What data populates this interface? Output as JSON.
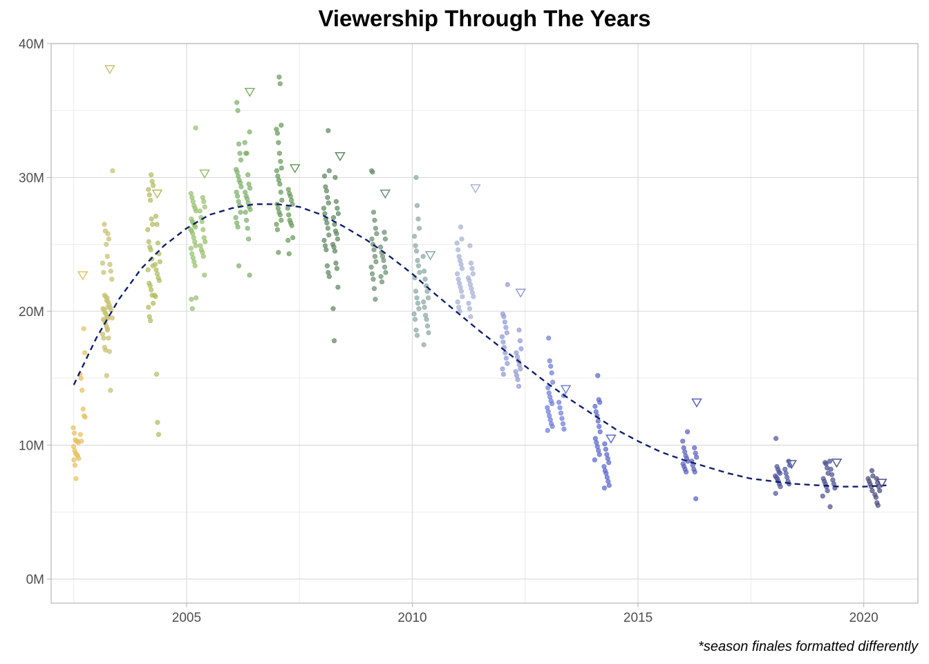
{
  "chart_data": {
    "type": "scatter",
    "title": "Viewership Through The Years",
    "caption": "*season finales formatted differently",
    "xlabel": "",
    "ylabel": "",
    "xlim": [
      2002.0,
      2021.2
    ],
    "ylim": [
      -1.8,
      40
    ],
    "x_ticks": [
      2005,
      2010,
      2015,
      2020
    ],
    "x_tick_labels": [
      "2005",
      "2010",
      "2015",
      "2020"
    ],
    "y_ticks": [
      0,
      10,
      20,
      30,
      40
    ],
    "y_tick_labels": [
      "0M",
      "10M",
      "20M",
      "30M",
      "40M"
    ],
    "grid": true,
    "legend": "none",
    "season_colors": [
      "#e8c060",
      "#c8c070",
      "#b0bc60",
      "#98c070",
      "#7eb06a",
      "#6a9a5a",
      "#5e8860",
      "#6a9070",
      "#8aa8a2",
      "#a8b0d6",
      "#909ad6",
      "#6e7ed8",
      "#5a68cc",
      "#5a62c0",
      "#50579e",
      "#4e5290",
      "#4a4c80",
      "#3e3e66"
    ],
    "seasons": [
      {
        "x": 2002.55,
        "values": [
          11.3,
          10.9,
          10.4,
          10.3,
          10.3,
          10.2,
          9.9,
          9.6,
          9.4,
          9.3,
          9.2,
          9.0,
          8.9,
          8.5,
          7.5
        ]
      },
      {
        "x": 2002.7,
        "values": [
          18.7,
          16.9,
          15.3,
          15.0,
          14.1,
          12.7,
          12.2,
          12.1,
          10.8,
          10.3
        ]
      },
      {
        "x": 2003.2,
        "values": [
          26.5,
          26.0,
          25.0,
          24.1,
          23.6,
          22.9,
          21.2,
          21.1,
          20.8,
          20.3,
          20.2,
          20.1,
          19.9,
          19.8,
          19.6,
          19.5,
          19.4,
          19.3,
          19.1,
          18.9,
          18.7,
          18.3,
          18.0,
          17.3,
          17.1,
          15.2
        ]
      },
      {
        "x": 2003.3,
        "values": [
          30.5,
          25.8,
          25.4,
          23.5,
          23.0,
          22.4,
          21.0,
          20.7,
          20.5,
          20.3,
          20.1,
          19.5,
          18.6,
          18.0,
          17.0,
          14.1
        ]
      },
      {
        "x": 2004.2,
        "values": [
          30.2,
          29.7,
          29.4,
          29.1,
          28.7,
          28.3,
          26.9,
          26.5,
          26.1,
          25.2,
          24.8,
          24.6,
          23.9,
          23.4,
          23.1,
          22.1,
          21.9,
          21.6,
          21.2,
          20.6,
          20.3,
          19.6,
          19.3
        ]
      },
      {
        "x": 2004.35,
        "values": [
          27.1,
          26.5,
          25.1,
          24.3,
          23.7,
          23.5,
          23.1,
          22.8,
          22.5,
          22.3,
          21.2,
          21.1,
          15.3,
          11.7,
          10.8
        ]
      },
      {
        "x": 2005.15,
        "values": [
          33.7,
          28.8,
          28.5,
          28.2,
          27.9,
          27.7,
          27.5,
          26.9,
          26.7,
          26.6,
          26.4,
          26.3,
          26.1,
          26.0,
          25.8,
          25.5,
          25.2,
          24.9,
          24.7,
          24.3,
          24.0,
          23.7,
          23.4,
          21.0,
          20.9,
          20.2
        ]
      },
      {
        "x": 2005.35,
        "values": [
          28.5,
          28.2,
          27.8,
          27.5,
          27.0,
          26.7,
          26.1,
          25.5,
          25.2,
          24.9,
          24.6,
          24.4,
          24.1,
          22.7
        ]
      },
      {
        "x": 2006.15,
        "values": [
          35.6,
          35.0,
          32.5,
          31.8,
          31.3,
          30.6,
          30.4,
          30.1,
          29.8,
          29.6,
          29.3,
          28.9,
          28.6,
          28.2,
          27.9,
          27.4,
          27.0,
          26.6,
          26.3,
          23.4
        ]
      },
      {
        "x": 2006.35,
        "values": [
          33.4,
          32.6,
          31.8,
          31.8,
          30.2,
          29.5,
          29.2,
          28.9,
          28.6,
          28.4,
          28.1,
          27.8,
          27.6,
          27.4,
          26.8,
          26.2,
          25.4,
          22.7
        ]
      },
      {
        "x": 2007.05,
        "values": [
          37.5,
          37.0,
          33.9,
          33.6,
          33.3,
          32.6,
          31.8,
          31.2,
          30.7,
          30.5,
          30.1,
          29.8,
          29.5,
          28.9,
          28.3,
          28.0,
          27.7,
          27.4,
          27.2,
          26.8,
          26.5,
          26.1,
          24.4
        ]
      },
      {
        "x": 2007.3,
        "values": [
          29.1,
          28.8,
          28.6,
          28.3,
          28.0,
          27.7,
          27.2,
          26.8,
          26.6,
          26.4,
          25.5,
          25.3,
          24.3
        ]
      },
      {
        "x": 2008.1,
        "values": [
          33.5,
          30.5,
          30.1,
          29.3,
          29.0,
          28.5,
          28.1,
          27.7,
          27.3,
          26.9,
          26.6,
          26.2,
          25.7,
          25.3,
          24.9,
          24.6,
          23.4,
          22.9,
          22.6
        ]
      },
      {
        "x": 2008.3,
        "values": [
          30.0,
          28.2,
          27.7,
          27.3,
          27.0,
          26.5,
          26.0,
          25.8,
          25.4,
          25.0,
          24.8,
          24.5,
          23.6,
          23.2,
          21.8,
          20.2,
          17.8
        ]
      },
      {
        "x": 2009.15,
        "values": [
          30.5,
          30.4,
          27.4,
          26.8,
          26.2,
          25.8,
          25.4,
          25.0,
          24.6,
          24.1,
          23.7,
          23.3,
          22.8,
          22.4,
          21.7,
          20.9
        ]
      },
      {
        "x": 2009.35,
        "values": [
          25.9,
          25.4,
          24.8,
          24.4,
          24.1,
          23.8,
          23.3,
          22.9,
          22.6,
          22.2
        ]
      },
      {
        "x": 2010.1,
        "values": [
          30.0,
          27.9,
          26.9,
          26.2,
          25.6,
          24.9,
          24.5,
          23.8,
          23.4,
          22.9,
          22.5,
          21.5,
          21.0,
          20.6,
          20.2,
          19.8,
          19.4,
          18.6,
          18.2
        ]
      },
      {
        "x": 2010.3,
        "values": [
          24.1,
          23.0,
          22.4,
          21.9,
          21.5,
          21.0,
          20.7,
          20.3,
          19.7,
          19.4,
          18.9,
          18.4,
          17.5
        ]
      },
      {
        "x": 2011.05,
        "values": [
          26.3,
          25.4,
          25.1,
          24.6,
          24.1,
          23.8,
          23.5,
          23.2,
          22.8,
          22.4,
          22.1,
          21.8,
          21.5,
          21.1,
          20.7,
          20.3,
          20.0
        ]
      },
      {
        "x": 2011.3,
        "values": [
          24.9,
          23.6,
          23.2,
          22.8,
          22.5,
          22.3,
          22.0,
          21.7,
          21.4,
          21.1,
          20.6,
          20.2,
          19.6
        ]
      },
      {
        "x": 2012.05,
        "values": [
          22.0,
          19.8,
          19.6,
          19.2,
          18.8,
          18.4,
          18.1,
          17.7,
          17.3,
          16.9,
          16.5,
          16.1,
          15.7,
          15.3
        ]
      },
      {
        "x": 2012.35,
        "values": [
          18.6,
          17.8,
          17.2,
          16.9,
          16.6,
          16.3,
          16.0,
          15.7,
          15.5,
          15.2,
          14.9,
          14.4
        ]
      },
      {
        "x": 2013.05,
        "values": [
          18.0,
          16.3,
          15.9,
          15.4,
          14.7,
          14.3,
          13.9,
          13.6,
          13.3,
          13.1,
          12.8,
          12.5,
          12.2,
          11.9,
          11.6,
          11.4,
          11.1
        ]
      },
      {
        "x": 2013.3,
        "values": [
          13.7,
          13.2,
          12.8,
          12.4,
          12.0,
          11.6,
          11.2
        ]
      },
      {
        "x": 2014.1,
        "values": [
          15.2,
          13.4,
          13.2,
          12.9,
          12.5,
          12.2,
          11.8,
          11.4,
          11.0,
          10.5,
          10.2,
          9.9,
          9.6,
          9.3,
          8.9
        ]
      },
      {
        "x": 2014.3,
        "values": [
          10.1,
          9.7,
          9.3,
          9.0,
          8.7,
          8.4,
          8.1,
          7.9,
          7.6,
          7.3,
          7.0,
          6.8
        ]
      },
      {
        "x": 2016.05,
        "values": [
          11.0,
          10.3,
          9.8,
          9.5,
          9.2,
          9.0,
          8.8,
          8.6,
          8.4,
          8.2,
          8.0
        ]
      },
      {
        "x": 2016.25,
        "values": [
          9.8,
          9.4,
          9.1,
          8.8,
          8.5,
          8.2,
          8.0,
          6.0
        ]
      },
      {
        "x": 2018.1,
        "values": [
          10.5,
          8.4,
          8.2,
          8.0,
          7.9,
          7.7,
          7.6,
          7.5,
          7.3,
          7.1,
          6.9,
          6.4
        ]
      },
      {
        "x": 2018.3,
        "values": [
          8.8,
          8.5,
          8.2,
          7.9,
          7.6,
          7.3,
          7.1
        ]
      },
      {
        "x": 2019.15,
        "values": [
          8.7,
          8.6,
          8.3,
          7.9,
          7.5,
          7.3,
          7.1,
          6.9,
          6.6,
          6.2
        ]
      },
      {
        "x": 2019.3,
        "values": [
          8.8,
          8.2,
          7.8,
          7.4,
          7.1,
          6.8,
          5.4
        ]
      },
      {
        "x": 2020.15,
        "values": [
          8.1,
          7.7,
          7.5,
          7.3,
          7.1,
          6.9,
          6.6
        ]
      },
      {
        "x": 2020.3,
        "values": [
          7.5,
          7.2,
          6.9,
          6.6,
          6.3,
          6.1,
          5.7,
          5.5
        ]
      }
    ],
    "season_finales": [
      {
        "x": 2002.7,
        "y": 22.7
      },
      {
        "x": 2003.3,
        "y": 38.1
      },
      {
        "x": 2004.35,
        "y": 28.8
      },
      {
        "x": 2005.4,
        "y": 30.3
      },
      {
        "x": 2006.4,
        "y": 36.4
      },
      {
        "x": 2007.4,
        "y": 30.7
      },
      {
        "x": 2008.4,
        "y": 31.6
      },
      {
        "x": 2009.4,
        "y": 28.8
      },
      {
        "x": 2010.4,
        "y": 24.2
      },
      {
        "x": 2011.4,
        "y": 29.2
      },
      {
        "x": 2012.4,
        "y": 21.4
      },
      {
        "x": 2013.4,
        "y": 14.2
      },
      {
        "x": 2014.4,
        "y": 10.5
      },
      {
        "x": 2016.3,
        "y": 13.2
      },
      {
        "x": 2018.4,
        "y": 8.6
      },
      {
        "x": 2019.4,
        "y": 8.7
      },
      {
        "x": 2020.4,
        "y": 7.2
      }
    ],
    "trend_line": {
      "style": "dashed",
      "color": "#0d1f6b",
      "x": [
        2002.5,
        2003.0,
        2003.5,
        2004.0,
        2004.5,
        2005.0,
        2005.5,
        2006.0,
        2006.5,
        2007.0,
        2007.5,
        2008.0,
        2008.5,
        2009.0,
        2009.5,
        2010.0,
        2010.5,
        2011.0,
        2011.5,
        2012.0,
        2012.5,
        2013.0,
        2013.5,
        2014.0,
        2014.5,
        2015.0,
        2015.5,
        2016.0,
        2016.5,
        2017.0,
        2017.5,
        2018.0,
        2018.5,
        2019.0,
        2019.5,
        2020.0,
        2020.5
      ],
      "y": [
        14.5,
        18.0,
        20.9,
        23.2,
        24.9,
        26.2,
        27.2,
        27.7,
        28.0,
        28.0,
        27.8,
        27.2,
        26.3,
        25.3,
        24.1,
        22.8,
        21.3,
        19.9,
        18.5,
        17.2,
        15.9,
        14.6,
        13.4,
        12.3,
        11.2,
        10.3,
        9.5,
        8.9,
        8.4,
        7.9,
        7.5,
        7.3,
        7.1,
        7.0,
        6.9,
        6.9,
        7.0
      ]
    }
  }
}
